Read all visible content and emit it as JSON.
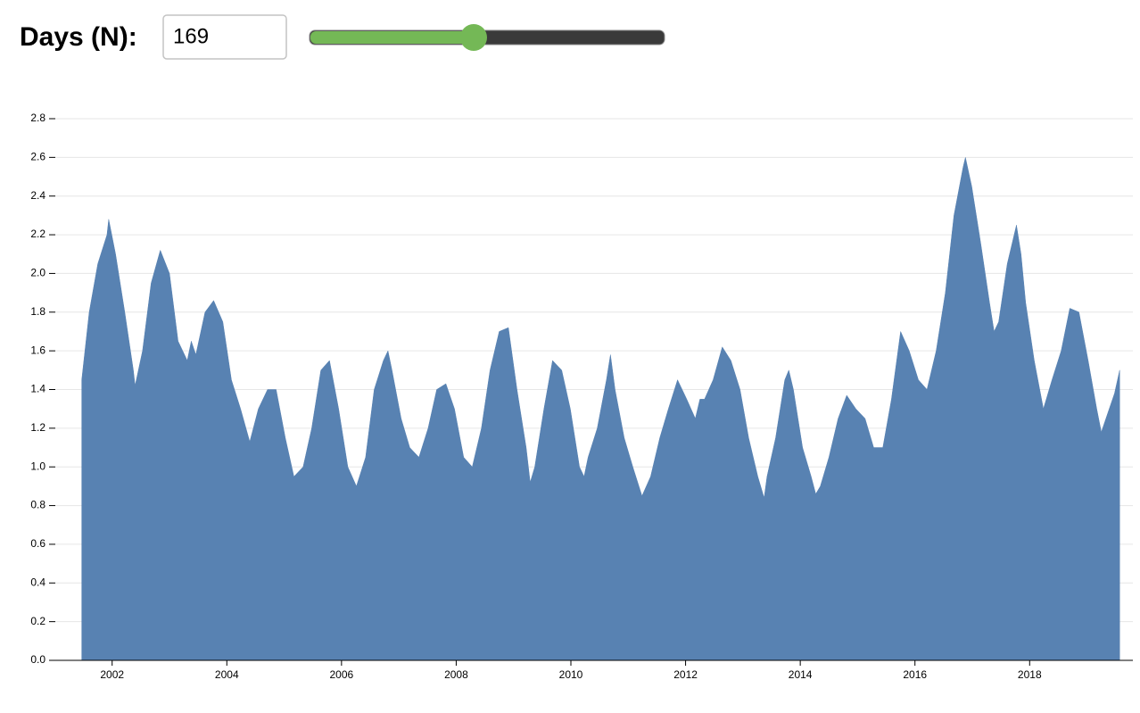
{
  "controls": {
    "label": "Days (N):",
    "value": "169"
  },
  "chart_data": {
    "type": "area",
    "color": "#5882b2",
    "grid": true,
    "xlim": [
      2000.9,
      2019.8
    ],
    "xticks": [
      2002,
      2004,
      2006,
      2008,
      2010,
      2012,
      2014,
      2016,
      2018
    ],
    "ylim": [
      0,
      2.8
    ],
    "yticks": [
      {
        "value": 0,
        "label": "0.0"
      },
      0.2,
      0.4,
      0.6,
      0.8,
      {
        "value": 1,
        "label": "1.0"
      },
      1.2,
      1.4,
      1.6,
      1.8,
      {
        "value": 2,
        "label": "2.0"
      },
      2.2,
      2.4,
      2.6,
      2.8
    ],
    "x": [
      2001.47,
      2001.6,
      2001.75,
      2001.91,
      2001.94,
      2002.06,
      2002.22,
      2002.37,
      2002.4,
      2002.53,
      2002.68,
      2002.84,
      2003.0,
      2003.15,
      2003.31,
      2003.38,
      2003.46,
      2003.62,
      2003.77,
      2003.93,
      2004.08,
      2004.24,
      2004.4,
      2004.55,
      2004.71,
      2004.86,
      2005.02,
      2005.17,
      2005.33,
      2005.48,
      2005.64,
      2005.79,
      2005.95,
      2006.11,
      2006.26,
      2006.42,
      2006.57,
      2006.73,
      2006.81,
      2006.88,
      2007.04,
      2007.19,
      2007.35,
      2007.51,
      2007.66,
      2007.82,
      2007.97,
      2008.13,
      2008.28,
      2008.44,
      2008.59,
      2008.75,
      2008.91,
      2009.06,
      2009.22,
      2009.29,
      2009.37,
      2009.53,
      2009.68,
      2009.84,
      2009.99,
      2010.15,
      2010.23,
      2010.3,
      2010.46,
      2010.62,
      2010.69,
      2010.77,
      2010.93,
      2011.08,
      2011.24,
      2011.39,
      2011.55,
      2011.7,
      2011.86,
      2012.02,
      2012.17,
      2012.25,
      2012.33,
      2012.48,
      2012.64,
      2012.79,
      2012.95,
      2013.1,
      2013.26,
      2013.37,
      2013.42,
      2013.57,
      2013.73,
      2013.8,
      2013.88,
      2014.04,
      2014.19,
      2014.27,
      2014.35,
      2014.5,
      2014.66,
      2014.81,
      2014.97,
      2015.13,
      2015.28,
      2015.44,
      2015.59,
      2015.75,
      2015.9,
      2016.06,
      2016.21,
      2016.37,
      2016.53,
      2016.68,
      2016.84,
      2016.88,
      2016.99,
      2017.15,
      2017.3,
      2017.38,
      2017.46,
      2017.61,
      2017.77,
      2017.85,
      2017.93,
      2018.08,
      2018.24,
      2018.39,
      2018.55,
      2018.7,
      2018.86,
      2019.02,
      2019.17,
      2019.25,
      2019.33,
      2019.48,
      2019.57
    ],
    "values": [
      1.45,
      1.8,
      2.05,
      2.2,
      2.28,
      2.1,
      1.8,
      1.5,
      1.42,
      1.6,
      1.95,
      2.12,
      2.0,
      1.65,
      1.55,
      1.65,
      1.58,
      1.8,
      1.86,
      1.75,
      1.45,
      1.3,
      1.13,
      1.3,
      1.4,
      1.4,
      1.15,
      0.95,
      1.0,
      1.2,
      1.5,
      1.55,
      1.3,
      1.0,
      0.9,
      1.05,
      1.4,
      1.55,
      1.6,
      1.5,
      1.25,
      1.1,
      1.05,
      1.2,
      1.4,
      1.43,
      1.3,
      1.05,
      1.0,
      1.2,
      1.5,
      1.7,
      1.72,
      1.4,
      1.1,
      0.92,
      1.0,
      1.3,
      1.55,
      1.5,
      1.3,
      1.0,
      0.95,
      1.05,
      1.2,
      1.45,
      1.58,
      1.4,
      1.15,
      1.0,
      0.85,
      0.95,
      1.15,
      1.3,
      1.45,
      1.35,
      1.25,
      1.35,
      1.35,
      1.45,
      1.62,
      1.55,
      1.4,
      1.15,
      0.95,
      0.84,
      0.95,
      1.15,
      1.45,
      1.5,
      1.4,
      1.1,
      0.95,
      0.86,
      0.9,
      1.05,
      1.25,
      1.37,
      1.3,
      1.25,
      1.1,
      1.1,
      1.35,
      1.7,
      1.6,
      1.45,
      1.4,
      1.6,
      1.9,
      2.3,
      2.55,
      2.6,
      2.45,
      2.15,
      1.85,
      1.7,
      1.75,
      2.05,
      2.25,
      2.1,
      1.85,
      1.55,
      1.3,
      1.45,
      1.6,
      1.82,
      1.8,
      1.55,
      1.3,
      1.18,
      1.25,
      1.38,
      1.5
    ]
  }
}
